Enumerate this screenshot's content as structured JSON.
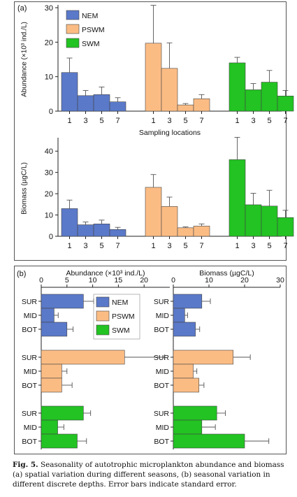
{
  "colors": {
    "NEM": "#5a79c9",
    "PSWM": "#fbbc84",
    "SWM": "#22c322",
    "axis": "#222222"
  },
  "caption": {
    "fig": "Fig. 5.",
    "text": "Seasonality of autotrophic microplankton abundance and biomass (a) spatial variation during different seasons, (b) seasonal variation in different discrete depths. Error bars indicate standard error."
  },
  "chart_data": [
    {
      "type": "bar",
      "panel": "(a)",
      "title": "",
      "ylabel": "Abundance (×10³ ind./L)",
      "xlabel": "",
      "ylim": [
        0,
        30
      ],
      "yticks": [
        0,
        10,
        20,
        30
      ],
      "categories": [
        "1",
        "3",
        "5",
        "7"
      ],
      "legend": [
        "NEM",
        "PSWM",
        "SWM"
      ],
      "legend_position": "top-left",
      "series": [
        {
          "name": "NEM",
          "values": [
            11.2,
            4.5,
            4.8,
            2.7
          ],
          "errors": [
            4.2,
            1.5,
            2.2,
            1.2
          ]
        },
        {
          "name": "PSWM",
          "values": [
            19.7,
            12.4,
            1.8,
            3.6
          ],
          "errors": [
            11.0,
            7.4,
            0.4,
            1.2
          ]
        },
        {
          "name": "SWM",
          "values": [
            14.0,
            6.2,
            8.4,
            4.4
          ],
          "errors": [
            1.6,
            1.8,
            3.4,
            1.6
          ]
        }
      ]
    },
    {
      "type": "bar",
      "panel": "",
      "title": "",
      "ylabel": "Biomass (µgC/L)",
      "xlabel": "Sampling locations",
      "ylim": [
        0,
        45
      ],
      "yticks": [
        0,
        10,
        20,
        30,
        40
      ],
      "categories": [
        "1",
        "3",
        "5",
        "7"
      ],
      "series": [
        {
          "name": "NEM",
          "values": [
            13.0,
            5.4,
            5.8,
            3.2
          ],
          "errors": [
            4.0,
            1.3,
            1.8,
            1.0
          ]
        },
        {
          "name": "PSWM",
          "values": [
            23.0,
            14.0,
            4.0,
            4.8
          ],
          "errors": [
            6.0,
            4.4,
            0.4,
            1.0
          ]
        },
        {
          "name": "SWM",
          "values": [
            36.0,
            14.8,
            14.2,
            8.8
          ],
          "errors": [
            10.5,
            5.4,
            7.4,
            3.4
          ]
        }
      ]
    },
    {
      "type": "bar",
      "orientation": "horizontal",
      "panel": "(b)",
      "title": "",
      "xlabel": "Abundance (×10³ ind./L)",
      "xlim": [
        0,
        25
      ],
      "xticks": [
        0,
        5,
        10,
        15,
        20
      ],
      "categories": [
        "SUR",
        "MID",
        "BOT"
      ],
      "legend": [
        "NEM",
        "PSWM",
        "SWM"
      ],
      "legend_position": "top-right",
      "series": [
        {
          "name": "NEM",
          "values": [
            8.2,
            2.5,
            5.0
          ],
          "errors": [
            2.0,
            0.8,
            1.2
          ]
        },
        {
          "name": "PSWM",
          "values": [
            16.2,
            4.0,
            4.0
          ],
          "errors": [
            7.8,
            1.0,
            2.0
          ]
        },
        {
          "name": "SWM",
          "values": [
            8.2,
            3.2,
            7.0
          ],
          "errors": [
            1.4,
            1.2,
            1.8
          ]
        }
      ]
    },
    {
      "type": "bar",
      "orientation": "horizontal",
      "panel": "",
      "title": "",
      "xlabel": "Biomass (µgC/L)",
      "xlim": [
        0,
        30
      ],
      "xticks": [
        0,
        10,
        20,
        30
      ],
      "categories": [
        "SUR",
        "MID",
        "BOT"
      ],
      "series": [
        {
          "name": "NEM",
          "values": [
            8.0,
            3.2,
            6.2
          ],
          "errors": [
            2.4,
            0.8,
            1.2
          ]
        },
        {
          "name": "PSWM",
          "values": [
            16.8,
            5.6,
            7.2
          ],
          "errors": [
            4.8,
            1.0,
            1.4
          ]
        },
        {
          "name": "SWM",
          "values": [
            12.2,
            8.0,
            20.0
          ],
          "errors": [
            2.4,
            3.8,
            6.8
          ]
        }
      ]
    }
  ]
}
